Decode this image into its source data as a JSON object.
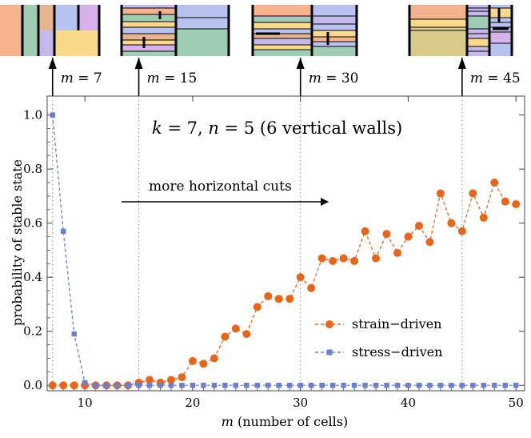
{
  "chart_data": {
    "type": "line",
    "title": "k = 7, n = 5 (6 vertical walls)",
    "title_parts": {
      "k_var": "k",
      "k_eq": " = 7, ",
      "n_var": "n",
      "n_eq": " = 5 (6 vertical walls)"
    },
    "xlabel": "m (number of cells)",
    "xlabel_parts": {
      "var": "m",
      "rest": " (number of cells)"
    },
    "ylabel": "probability of stable state",
    "xlim": [
      6.5,
      50.8
    ],
    "ylim": [
      -0.02,
      1.07
    ],
    "xticks": [
      10,
      20,
      30,
      40,
      50
    ],
    "yticks": [
      0.0,
      0.2,
      0.4,
      0.6,
      0.8,
      1.0
    ],
    "ytick_labels": [
      "0.0",
      "0.2",
      "0.4",
      "0.6",
      "0.8",
      "1.0"
    ],
    "vlines": [
      7,
      15,
      30,
      45
    ],
    "annotation": "more horizontal cuts",
    "legend_position": "center-right",
    "series": [
      {
        "name": "strain−driven",
        "color": "#e8661a",
        "marker": "circle",
        "x": [
          7,
          8,
          9,
          10,
          11,
          12,
          13,
          14,
          15,
          16,
          17,
          18,
          19,
          20,
          21,
          22,
          23,
          24,
          25,
          26,
          27,
          28,
          29,
          30,
          31,
          32,
          33,
          34,
          35,
          36,
          37,
          38,
          39,
          40,
          41,
          42,
          43,
          44,
          45,
          46,
          47,
          48,
          49,
          50
        ],
        "values": [
          0,
          0,
          0,
          0,
          0,
          0,
          0,
          0,
          0.01,
          0.02,
          0.01,
          0.02,
          0.03,
          0.09,
          0.08,
          0.1,
          0.18,
          0.21,
          0.19,
          0.29,
          0.33,
          0.32,
          0.32,
          0.4,
          0.36,
          0.47,
          0.46,
          0.47,
          0.46,
          0.57,
          0.47,
          0.56,
          0.49,
          0.55,
          0.59,
          0.53,
          0.71,
          0.6,
          0.57,
          0.71,
          0.62,
          0.75,
          0.68,
          0.67
        ]
      },
      {
        "name": "stress−driven",
        "color": "#6a7fd1",
        "marker": "square",
        "x": [
          7,
          8,
          9,
          10,
          11,
          12,
          13,
          14,
          15,
          16,
          17,
          18,
          19,
          20,
          21,
          22,
          23,
          24,
          25,
          26,
          27,
          28,
          29,
          30,
          31,
          32,
          33,
          34,
          35,
          36,
          37,
          38,
          39,
          40,
          41,
          42,
          43,
          44,
          45,
          46,
          47,
          48,
          49,
          50
        ],
        "values": [
          1.0,
          0.57,
          0.19,
          0.01,
          0,
          0,
          0,
          0,
          0,
          0,
          0,
          0,
          0,
          0,
          0,
          0,
          0,
          0,
          0,
          0,
          0,
          0,
          0,
          0,
          0,
          0,
          0,
          0,
          0,
          0,
          0,
          0,
          0,
          0,
          0,
          0,
          0,
          0,
          0,
          0,
          0,
          0,
          0,
          0
        ]
      }
    ],
    "insets": [
      {
        "m": 7,
        "label_var": "m",
        "label_eq": " = 7"
      },
      {
        "m": 15,
        "label_var": "m",
        "label_eq": " = 15"
      },
      {
        "m": 30,
        "label_var": "m",
        "label_eq": " = 30"
      },
      {
        "m": 45,
        "label_var": "m",
        "label_eq": " = 45"
      }
    ]
  }
}
